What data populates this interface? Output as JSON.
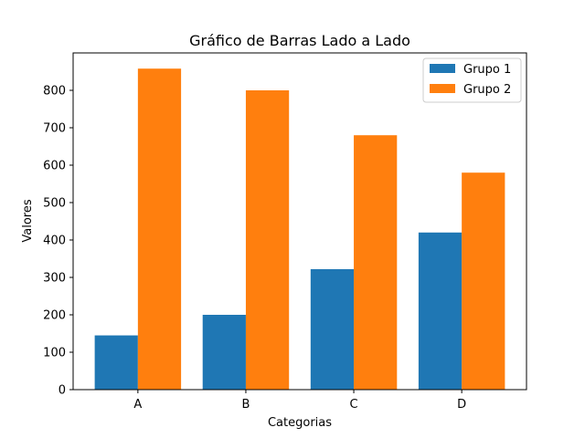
{
  "chart_data": {
    "type": "bar",
    "title": "Gráfico de Barras Lado a Lado",
    "xlabel": "Categorias",
    "ylabel": "Valores",
    "categories": [
      "A",
      "B",
      "C",
      "D"
    ],
    "series": [
      {
        "name": "Grupo 1",
        "values": [
          145,
          200,
          322,
          420
        ],
        "color": "#1f77b4"
      },
      {
        "name": "Grupo 2",
        "values": [
          858,
          800,
          680,
          580
        ],
        "color": "#ff7f0e"
      }
    ],
    "ylim": [
      0,
      900
    ],
    "yticks": [
      0,
      100,
      200,
      300,
      400,
      500,
      600,
      700,
      800
    ],
    "grid": false,
    "legend_position": "top-right"
  }
}
